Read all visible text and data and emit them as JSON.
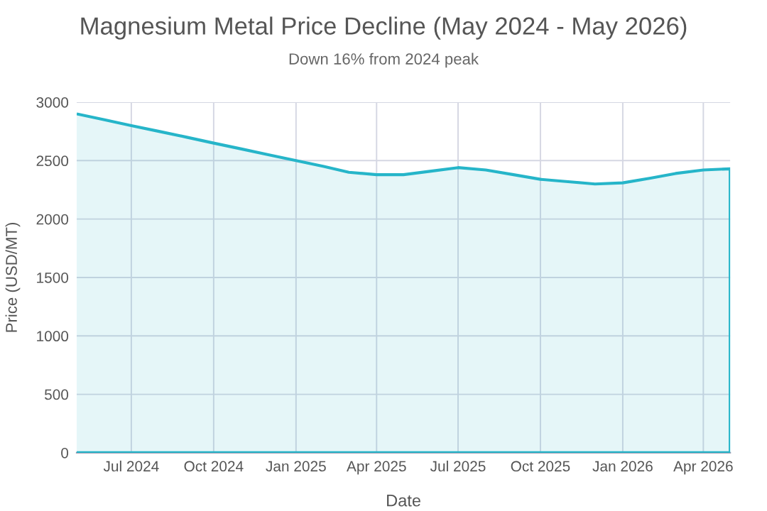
{
  "chart_data": {
    "type": "area",
    "title": "Magnesium Metal Price Decline (May 2024 - May 2026)",
    "subtitle": "Down 16% from 2024 peak",
    "xlabel": "Date",
    "ylabel": "Price (USD/MT)",
    "x": [
      "2024-05",
      "2024-06",
      "2024-07",
      "2024-08",
      "2024-09",
      "2024-10",
      "2024-11",
      "2024-12",
      "2025-01",
      "2025-02",
      "2025-03",
      "2025-04",
      "2025-05",
      "2025-06",
      "2025-07",
      "2025-08",
      "2025-09",
      "2025-10",
      "2025-11",
      "2025-12",
      "2026-01",
      "2026-02",
      "2026-03",
      "2026-04",
      "2026-05"
    ],
    "series": [
      {
        "color": "#26b5c9",
        "values": [
          2900,
          2850,
          2800,
          2750,
          2700,
          2650,
          2600,
          2550,
          2500,
          2450,
          2400,
          2380,
          2380,
          2410,
          2440,
          2420,
          2380,
          2340,
          2320,
          2300,
          2310,
          2350,
          2390,
          2420,
          2430
        ]
      }
    ],
    "xlim": [
      "2024-05",
      "2026-05"
    ],
    "xticks": [
      {
        "value": "2024-07",
        "label": "Jul 2024"
      },
      {
        "value": "2024-10",
        "label": "Oct 2024"
      },
      {
        "value": "2025-01",
        "label": "Jan 2025"
      },
      {
        "value": "2025-04",
        "label": "Apr 2025"
      },
      {
        "value": "2025-07",
        "label": "Jul 2025"
      },
      {
        "value": "2025-10",
        "label": "Oct 2025"
      },
      {
        "value": "2026-01",
        "label": "Jan 2026"
      },
      {
        "value": "2026-04",
        "label": "Apr 2026"
      }
    ],
    "ylim": [
      0,
      3000
    ],
    "yticks": [
      0,
      500,
      1000,
      1500,
      2000,
      2500,
      3000
    ],
    "grid": true,
    "legend": false
  }
}
